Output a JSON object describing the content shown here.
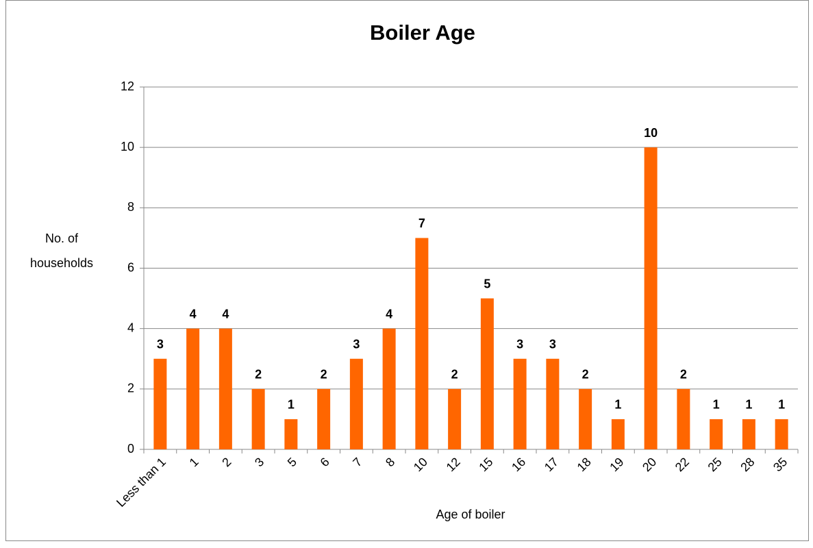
{
  "chart_data": {
    "type": "bar",
    "title": "Boiler Age",
    "x_label": "Age of boiler",
    "y_label": "No. of households",
    "categories": [
      "Less than 1",
      "1",
      "2",
      "3",
      "5",
      "6",
      "7",
      "8",
      "10",
      "12",
      "15",
      "16",
      "17",
      "18",
      "19",
      "20",
      "22",
      "25",
      "28",
      "35"
    ],
    "values": [
      3,
      4,
      4,
      2,
      1,
      2,
      3,
      4,
      7,
      2,
      5,
      3,
      3,
      2,
      1,
      10,
      2,
      1,
      1,
      1
    ],
    "color": "#ff6600",
    "ylim": [
      0,
      12
    ],
    "yticks": [
      0,
      2,
      4,
      6,
      8,
      10,
      12
    ],
    "grid": true
  }
}
